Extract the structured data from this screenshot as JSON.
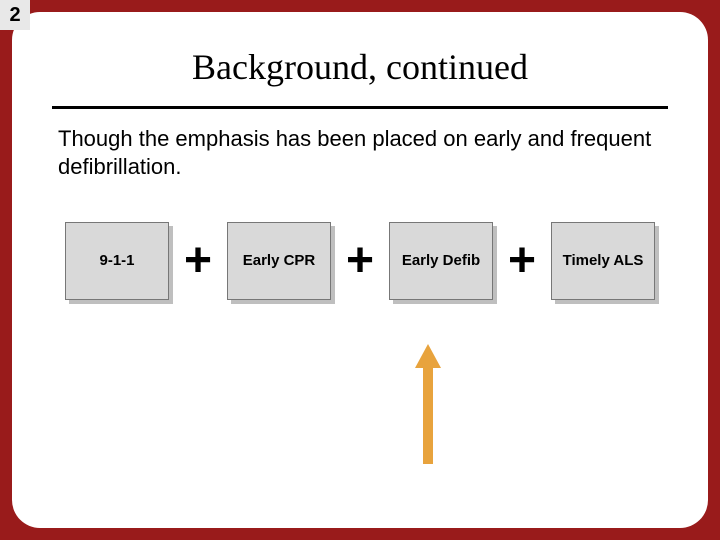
{
  "page_number": "2",
  "title": "Background, continued",
  "body": "Though the emphasis has been placed on early and frequent defibrillation.",
  "chain": {
    "boxes": [
      "9-1-1",
      "Early CPR",
      "Early Defib",
      "Timely ALS"
    ],
    "separator": "+",
    "box_bg": "#d9d9d9",
    "box_shadow": "#bfbfbf",
    "box_border": "#777777",
    "box_fontsize": 15,
    "plus_fontsize": 48
  },
  "arrow": {
    "points_to_box_index": 2,
    "color": "#e8a33d"
  },
  "colors": {
    "frame": "#991b1b",
    "card": "#ffffff",
    "badge_bg": "#e8e8e8",
    "text": "#000000"
  }
}
